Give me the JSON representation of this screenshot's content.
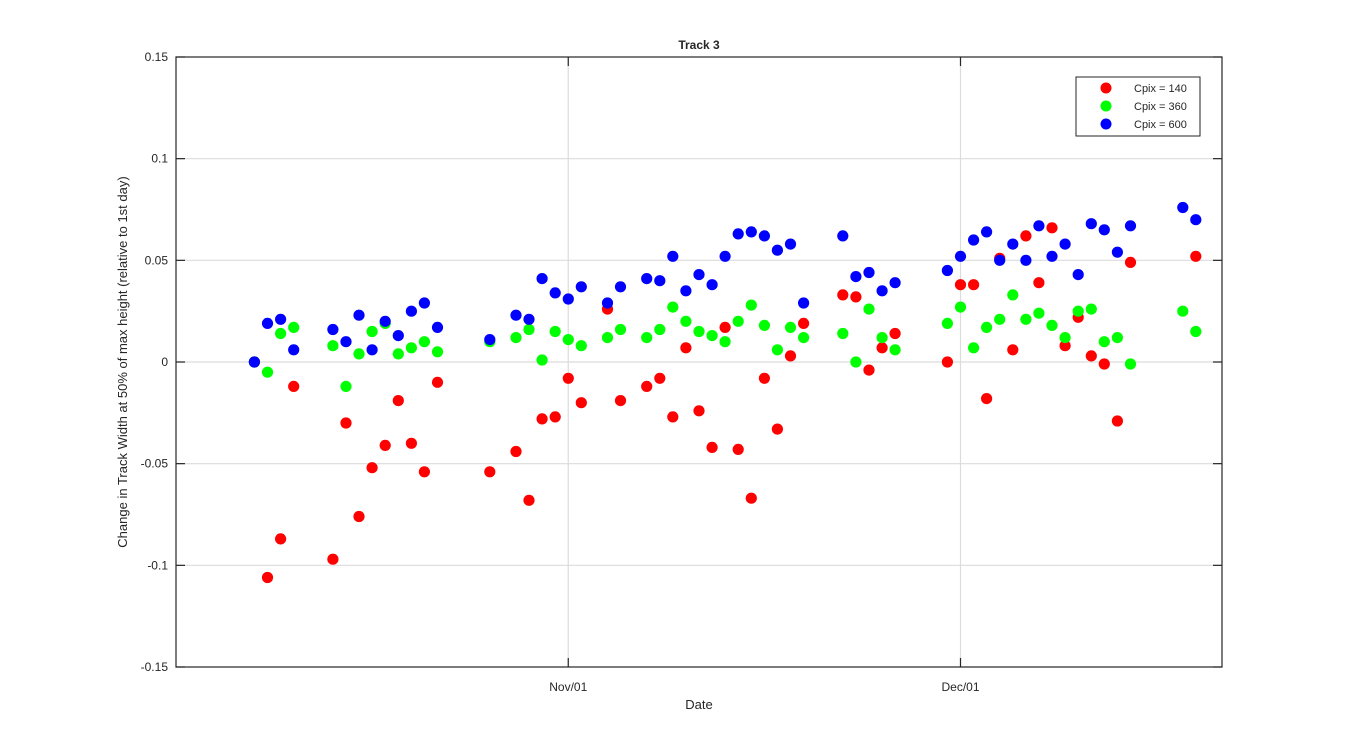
{
  "chart_data": {
    "type": "scatter",
    "title": "Track 3",
    "xlabel": "Date",
    "ylabel": "Change in Track Width at 50% of max height (relative to 1st day)",
    "x_axis": {
      "type": "date",
      "min": "2015-10-02",
      "max": "2015-12-21"
    },
    "ylim": [
      -0.15,
      0.15
    ],
    "y_ticks": [
      -0.15,
      -0.1,
      -0.05,
      0,
      0.05,
      0.1,
      0.15
    ],
    "y_tick_labels": [
      "-0.15",
      "-0.1",
      "-0.05",
      "0",
      "0.05",
      "0.1",
      "0.15"
    ],
    "x_ticks": [
      {
        "date": "2015-11-01",
        "label": "Nov/01"
      },
      {
        "date": "2015-12-01",
        "label": "Dec/01"
      }
    ],
    "grid": true,
    "legend_position": "top-right",
    "series": [
      {
        "name": "Cpix = 140",
        "color": "#ff0000",
        "points": [
          [
            "2015-10-08",
            0.0
          ],
          [
            "2015-10-09",
            -0.106
          ],
          [
            "2015-10-10",
            -0.087
          ],
          [
            "2015-10-11",
            -0.012
          ],
          [
            "2015-10-14",
            -0.097
          ],
          [
            "2015-10-15",
            -0.03
          ],
          [
            "2015-10-16",
            -0.076
          ],
          [
            "2015-10-17",
            -0.052
          ],
          [
            "2015-10-18",
            -0.041
          ],
          [
            "2015-10-19",
            -0.019
          ],
          [
            "2015-10-20",
            -0.04
          ],
          [
            "2015-10-21",
            -0.054
          ],
          [
            "2015-10-22",
            -0.01
          ],
          [
            "2015-10-26",
            -0.054
          ],
          [
            "2015-10-28",
            -0.044
          ],
          [
            "2015-10-29",
            -0.068
          ],
          [
            "2015-10-30",
            -0.028
          ],
          [
            "2015-10-31",
            -0.027
          ],
          [
            "2015-11-01",
            -0.008
          ],
          [
            "2015-11-02",
            -0.02
          ],
          [
            "2015-11-04",
            0.026
          ],
          [
            "2015-11-05",
            -0.019
          ],
          [
            "2015-11-07",
            -0.012
          ],
          [
            "2015-11-08",
            -0.008
          ],
          [
            "2015-11-09",
            -0.027
          ],
          [
            "2015-11-10",
            0.007
          ],
          [
            "2015-11-11",
            -0.024
          ],
          [
            "2015-11-12",
            -0.042
          ],
          [
            "2015-11-13",
            0.017
          ],
          [
            "2015-11-14",
            -0.043
          ],
          [
            "2015-11-15",
            -0.067
          ],
          [
            "2015-11-16",
            -0.008
          ],
          [
            "2015-11-17",
            -0.033
          ],
          [
            "2015-11-18",
            0.003
          ],
          [
            "2015-11-19",
            0.019
          ],
          [
            "2015-11-22",
            0.033
          ],
          [
            "2015-11-23",
            0.032
          ],
          [
            "2015-11-24",
            -0.004
          ],
          [
            "2015-11-25",
            0.007
          ],
          [
            "2015-11-26",
            0.014
          ],
          [
            "2015-11-30",
            0.0
          ],
          [
            "2015-12-01",
            0.038
          ],
          [
            "2015-12-02",
            0.038
          ],
          [
            "2015-12-03",
            -0.018
          ],
          [
            "2015-12-04",
            0.051
          ],
          [
            "2015-12-05",
            0.006
          ],
          [
            "2015-12-06",
            0.062
          ],
          [
            "2015-12-07",
            0.039
          ],
          [
            "2015-12-08",
            0.066
          ],
          [
            "2015-12-09",
            0.008
          ],
          [
            "2015-12-10",
            0.022
          ],
          [
            "2015-12-11",
            0.003
          ],
          [
            "2015-12-12",
            -0.001
          ],
          [
            "2015-12-13",
            -0.029
          ],
          [
            "2015-12-14",
            0.049
          ],
          [
            "2015-12-19",
            0.052
          ]
        ]
      },
      {
        "name": "Cpix = 360",
        "color": "#00ff00",
        "points": [
          [
            "2015-10-08",
            0.0
          ],
          [
            "2015-10-09",
            -0.005
          ],
          [
            "2015-10-10",
            0.014
          ],
          [
            "2015-10-11",
            0.017
          ],
          [
            "2015-10-14",
            0.008
          ],
          [
            "2015-10-15",
            -0.012
          ],
          [
            "2015-10-16",
            0.004
          ],
          [
            "2015-10-17",
            0.015
          ],
          [
            "2015-10-18",
            0.019
          ],
          [
            "2015-10-19",
            0.004
          ],
          [
            "2015-10-20",
            0.007
          ],
          [
            "2015-10-21",
            0.01
          ],
          [
            "2015-10-22",
            0.005
          ],
          [
            "2015-10-26",
            0.01
          ],
          [
            "2015-10-28",
            0.012
          ],
          [
            "2015-10-29",
            0.016
          ],
          [
            "2015-10-30",
            0.001
          ],
          [
            "2015-10-31",
            0.015
          ],
          [
            "2015-11-01",
            0.011
          ],
          [
            "2015-11-02",
            0.008
          ],
          [
            "2015-11-04",
            0.012
          ],
          [
            "2015-11-05",
            0.016
          ],
          [
            "2015-11-07",
            0.012
          ],
          [
            "2015-11-08",
            0.016
          ],
          [
            "2015-11-09",
            0.027
          ],
          [
            "2015-11-10",
            0.02
          ],
          [
            "2015-11-11",
            0.015
          ],
          [
            "2015-11-12",
            0.013
          ],
          [
            "2015-11-13",
            0.01
          ],
          [
            "2015-11-14",
            0.02
          ],
          [
            "2015-11-15",
            0.028
          ],
          [
            "2015-11-16",
            0.018
          ],
          [
            "2015-11-17",
            0.006
          ],
          [
            "2015-11-18",
            0.017
          ],
          [
            "2015-11-19",
            0.012
          ],
          [
            "2015-11-22",
            0.014
          ],
          [
            "2015-11-23",
            0.0
          ],
          [
            "2015-11-24",
            0.026
          ],
          [
            "2015-11-25",
            0.012
          ],
          [
            "2015-11-26",
            0.006
          ],
          [
            "2015-11-30",
            0.019
          ],
          [
            "2015-12-01",
            0.027
          ],
          [
            "2015-12-02",
            0.007
          ],
          [
            "2015-12-03",
            0.017
          ],
          [
            "2015-12-04",
            0.021
          ],
          [
            "2015-12-05",
            0.033
          ],
          [
            "2015-12-06",
            0.021
          ],
          [
            "2015-12-07",
            0.024
          ],
          [
            "2015-12-08",
            0.018
          ],
          [
            "2015-12-09",
            0.012
          ],
          [
            "2015-12-10",
            0.025
          ],
          [
            "2015-12-11",
            0.026
          ],
          [
            "2015-12-12",
            0.01
          ],
          [
            "2015-12-13",
            0.012
          ],
          [
            "2015-12-14",
            -0.001
          ],
          [
            "2015-12-18",
            0.025
          ],
          [
            "2015-12-19",
            0.015
          ]
        ]
      },
      {
        "name": "Cpix = 600",
        "color": "#0000ff",
        "points": [
          [
            "2015-10-08",
            0.0
          ],
          [
            "2015-10-09",
            0.019
          ],
          [
            "2015-10-10",
            0.021
          ],
          [
            "2015-10-11",
            0.006
          ],
          [
            "2015-10-14",
            0.016
          ],
          [
            "2015-10-15",
            0.01
          ],
          [
            "2015-10-16",
            0.023
          ],
          [
            "2015-10-17",
            0.006
          ],
          [
            "2015-10-18",
            0.02
          ],
          [
            "2015-10-19",
            0.013
          ],
          [
            "2015-10-20",
            0.025
          ],
          [
            "2015-10-21",
            0.029
          ],
          [
            "2015-10-22",
            0.017
          ],
          [
            "2015-10-26",
            0.011
          ],
          [
            "2015-10-28",
            0.023
          ],
          [
            "2015-10-29",
            0.021
          ],
          [
            "2015-10-30",
            0.041
          ],
          [
            "2015-10-31",
            0.034
          ],
          [
            "2015-11-01",
            0.031
          ],
          [
            "2015-11-02",
            0.037
          ],
          [
            "2015-11-04",
            0.029
          ],
          [
            "2015-11-05",
            0.037
          ],
          [
            "2015-11-07",
            0.041
          ],
          [
            "2015-11-08",
            0.04
          ],
          [
            "2015-11-09",
            0.052
          ],
          [
            "2015-11-10",
            0.035
          ],
          [
            "2015-11-11",
            0.043
          ],
          [
            "2015-11-12",
            0.038
          ],
          [
            "2015-11-13",
            0.052
          ],
          [
            "2015-11-14",
            0.063
          ],
          [
            "2015-11-15",
            0.064
          ],
          [
            "2015-11-16",
            0.062
          ],
          [
            "2015-11-17",
            0.055
          ],
          [
            "2015-11-18",
            0.058
          ],
          [
            "2015-11-19",
            0.029
          ],
          [
            "2015-11-22",
            0.062
          ],
          [
            "2015-11-23",
            0.042
          ],
          [
            "2015-11-24",
            0.044
          ],
          [
            "2015-11-25",
            0.035
          ],
          [
            "2015-11-26",
            0.039
          ],
          [
            "2015-11-30",
            0.045
          ],
          [
            "2015-12-01",
            0.052
          ],
          [
            "2015-12-02",
            0.06
          ],
          [
            "2015-12-03",
            0.064
          ],
          [
            "2015-12-04",
            0.05
          ],
          [
            "2015-12-05",
            0.058
          ],
          [
            "2015-12-06",
            0.05
          ],
          [
            "2015-12-07",
            0.067
          ],
          [
            "2015-12-08",
            0.052
          ],
          [
            "2015-12-09",
            0.058
          ],
          [
            "2015-12-10",
            0.043
          ],
          [
            "2015-12-11",
            0.068
          ],
          [
            "2015-12-12",
            0.065
          ],
          [
            "2015-12-13",
            0.054
          ],
          [
            "2015-12-14",
            0.067
          ],
          [
            "2015-12-18",
            0.076
          ],
          [
            "2015-12-19",
            0.07
          ]
        ]
      }
    ]
  }
}
